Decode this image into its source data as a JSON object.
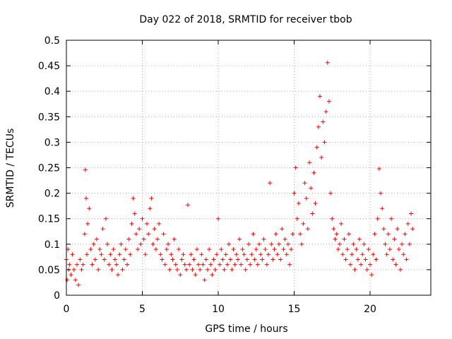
{
  "chart_data": {
    "type": "scatter",
    "title": "Day 022 of 2018, SRMTID for receiver tbob",
    "xlabel": "GPS time / hours",
    "ylabel": "SRMTID / TECUs",
    "xlim": [
      0,
      24
    ],
    "ylim": [
      0,
      0.5
    ],
    "xticks": [
      0,
      5,
      10,
      15,
      20
    ],
    "xtick_labels": [
      "0",
      "5",
      "10",
      "15",
      "20"
    ],
    "yticks": [
      0,
      0.05,
      0.1,
      0.15,
      0.2,
      0.25,
      0.3,
      0.35,
      0.4,
      0.45,
      0.5
    ],
    "ytick_labels": [
      "0",
      "0.05",
      "0.1",
      "0.15",
      "0.2",
      "0.25",
      "0.3",
      "0.35",
      "0.4",
      "0.45",
      "0.5"
    ],
    "grid": true,
    "marker": "+",
    "color": "#ff0000",
    "series": [
      {
        "name": "SRMTID",
        "x": [
          0.0,
          0.05,
          0.1,
          0.15,
          0.2,
          0.3,
          0.4,
          0.5,
          0.6,
          0.7,
          0.8,
          0.9,
          1.0,
          1.1,
          1.2,
          1.25,
          1.3,
          1.35,
          1.4,
          1.5,
          1.6,
          1.7,
          1.8,
          1.9,
          2.0,
          2.1,
          2.2,
          2.3,
          2.4,
          2.5,
          2.6,
          2.7,
          2.8,
          2.9,
          3.0,
          3.1,
          3.2,
          3.3,
          3.4,
          3.5,
          3.6,
          3.7,
          3.8,
          3.9,
          4.0,
          4.1,
          4.2,
          4.3,
          4.4,
          4.5,
          4.6,
          4.7,
          4.8,
          4.9,
          5.0,
          5.1,
          5.2,
          5.3,
          5.4,
          5.5,
          5.6,
          5.7,
          5.8,
          5.9,
          6.0,
          6.1,
          6.2,
          6.3,
          6.4,
          6.5,
          6.6,
          6.7,
          6.8,
          6.9,
          7.0,
          7.1,
          7.2,
          7.3,
          7.4,
          7.5,
          7.6,
          7.7,
          7.8,
          7.9,
          8.0,
          8.1,
          8.2,
          8.3,
          8.4,
          8.5,
          8.6,
          8.7,
          8.8,
          8.9,
          9.0,
          9.1,
          9.2,
          9.3,
          9.4,
          9.5,
          9.6,
          9.7,
          9.8,
          9.9,
          10.0,
          10.1,
          10.2,
          10.3,
          10.4,
          10.5,
          10.6,
          10.7,
          10.8,
          10.9,
          11.0,
          11.1,
          11.2,
          11.3,
          11.4,
          11.5,
          11.6,
          11.7,
          11.8,
          11.9,
          12.0,
          12.1,
          12.2,
          12.3,
          12.4,
          12.5,
          12.6,
          12.7,
          12.8,
          12.9,
          13.0,
          13.1,
          13.2,
          13.3,
          13.4,
          13.5,
          13.6,
          13.7,
          13.8,
          13.9,
          14.0,
          14.1,
          14.2,
          14.3,
          14.4,
          14.5,
          14.6,
          14.7,
          14.8,
          14.9,
          15.0,
          15.1,
          15.2,
          15.3,
          15.4,
          15.5,
          15.6,
          15.7,
          15.8,
          15.9,
          16.0,
          16.1,
          16.2,
          16.3,
          16.4,
          16.5,
          16.6,
          16.7,
          16.8,
          16.9,
          17.0,
          17.1,
          17.2,
          17.3,
          17.4,
          17.5,
          17.6,
          17.7,
          17.8,
          17.9,
          18.0,
          18.1,
          18.2,
          18.3,
          18.4,
          18.5,
          18.6,
          18.7,
          18.8,
          18.9,
          19.0,
          19.1,
          19.2,
          19.3,
          19.4,
          19.5,
          19.6,
          19.7,
          19.8,
          19.9,
          20.0,
          20.1,
          20.2,
          20.3,
          20.4,
          20.5,
          20.6,
          20.7,
          20.8,
          20.9,
          21.0,
          21.1,
          21.2,
          21.3,
          21.4,
          21.5,
          21.6,
          21.7,
          21.8,
          21.9,
          22.0,
          22.1,
          22.2,
          22.3,
          22.4,
          22.5,
          22.6,
          22.7,
          22.8
        ],
        "y": [
          0.07,
          0.03,
          0.09,
          0.05,
          0.06,
          0.04,
          0.08,
          0.05,
          0.03,
          0.06,
          0.02,
          0.07,
          0.05,
          0.06,
          0.12,
          0.246,
          0.19,
          0.08,
          0.14,
          0.17,
          0.09,
          0.06,
          0.1,
          0.07,
          0.11,
          0.05,
          0.09,
          0.08,
          0.13,
          0.07,
          0.15,
          0.1,
          0.06,
          0.08,
          0.05,
          0.09,
          0.07,
          0.06,
          0.04,
          0.08,
          0.1,
          0.05,
          0.07,
          0.09,
          0.06,
          0.11,
          0.08,
          0.14,
          0.19,
          0.16,
          0.12,
          0.09,
          0.13,
          0.1,
          0.15,
          0.11,
          0.08,
          0.14,
          0.12,
          0.17,
          0.19,
          0.1,
          0.13,
          0.09,
          0.11,
          0.14,
          0.08,
          0.07,
          0.12,
          0.06,
          0.09,
          0.1,
          0.05,
          0.08,
          0.07,
          0.11,
          0.06,
          0.05,
          0.09,
          0.04,
          0.07,
          0.08,
          0.06,
          0.05,
          0.177,
          0.06,
          0.08,
          0.05,
          0.07,
          0.04,
          0.09,
          0.06,
          0.05,
          0.08,
          0.06,
          0.03,
          0.07,
          0.05,
          0.09,
          0.06,
          0.04,
          0.07,
          0.05,
          0.08,
          0.15,
          0.06,
          0.09,
          0.07,
          0.05,
          0.08,
          0.06,
          0.1,
          0.07,
          0.05,
          0.09,
          0.06,
          0.08,
          0.07,
          0.11,
          0.06,
          0.09,
          0.08,
          0.05,
          0.07,
          0.1,
          0.06,
          0.08,
          0.12,
          0.07,
          0.09,
          0.06,
          0.1,
          0.08,
          0.07,
          0.11,
          0.09,
          0.06,
          0.08,
          0.22,
          0.1,
          0.07,
          0.09,
          0.12,
          0.08,
          0.1,
          0.07,
          0.13,
          0.09,
          0.11,
          0.08,
          0.1,
          0.06,
          0.09,
          0.12,
          0.2,
          0.25,
          0.15,
          0.18,
          0.12,
          0.1,
          0.14,
          0.22,
          0.19,
          0.13,
          0.26,
          0.21,
          0.16,
          0.24,
          0.18,
          0.29,
          0.33,
          0.39,
          0.27,
          0.34,
          0.3,
          0.36,
          0.456,
          0.38,
          0.2,
          0.15,
          0.13,
          0.11,
          0.12,
          0.09,
          0.1,
          0.14,
          0.08,
          0.11,
          0.07,
          0.09,
          0.12,
          0.06,
          0.08,
          0.1,
          0.05,
          0.09,
          0.07,
          0.11,
          0.06,
          0.08,
          0.1,
          0.07,
          0.05,
          0.09,
          0.06,
          0.04,
          0.08,
          0.12,
          0.07,
          0.15,
          0.248,
          0.2,
          0.17,
          0.13,
          0.1,
          0.08,
          0.12,
          0.09,
          0.15,
          0.07,
          0.11,
          0.06,
          0.13,
          0.09,
          0.05,
          0.1,
          0.08,
          0.12,
          0.07,
          0.14,
          0.1,
          0.16,
          0.13
        ]
      }
    ]
  }
}
